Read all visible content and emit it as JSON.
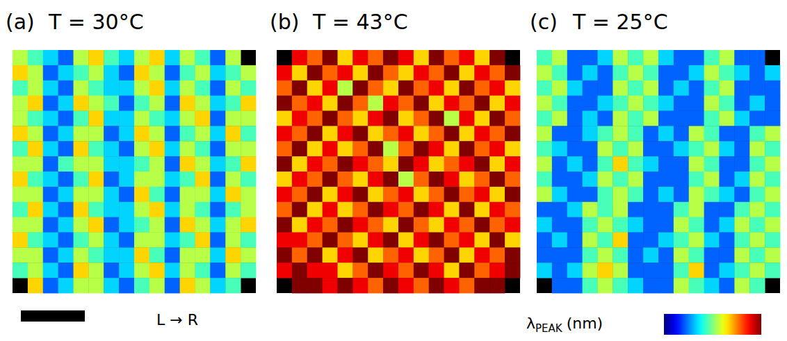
{
  "chart_data": [
    {
      "type": "heatmap",
      "panel": "(a)",
      "title": "T = 30°C",
      "annotation": "L → R",
      "cells": [
        [
          5,
          4,
          3,
          2,
          5,
          6,
          4,
          3,
          5,
          6,
          3,
          5,
          4,
          2,
          5,
          null
        ],
        [
          6,
          5,
          2,
          3,
          4,
          5,
          3,
          2,
          6,
          5,
          2,
          4,
          5,
          3,
          4,
          5
        ],
        [
          4,
          5,
          3,
          2,
          5,
          4,
          3,
          3,
          5,
          6,
          3,
          5,
          4,
          2,
          5,
          4
        ],
        [
          5,
          6,
          2,
          3,
          6,
          5,
          4,
          2,
          4,
          5,
          2,
          6,
          5,
          3,
          4,
          6
        ],
        [
          5,
          4,
          3,
          2,
          4,
          6,
          3,
          3,
          5,
          4,
          3,
          5,
          6,
          2,
          5,
          5
        ],
        [
          6,
          5,
          2,
          3,
          5,
          5,
          2,
          3,
          6,
          5,
          2,
          4,
          5,
          3,
          6,
          4
        ],
        [
          4,
          6,
          3,
          2,
          6,
          4,
          3,
          2,
          5,
          6,
          3,
          5,
          4,
          2,
          5,
          5
        ],
        [
          5,
          5,
          2,
          4,
          5,
          5,
          3,
          3,
          4,
          5,
          2,
          6,
          5,
          3,
          4,
          6
        ],
        [
          6,
          4,
          3,
          2,
          4,
          6,
          2,
          3,
          5,
          5,
          3,
          4,
          6,
          2,
          5,
          4
        ],
        [
          5,
          5,
          2,
          3,
          5,
          5,
          3,
          2,
          6,
          4,
          2,
          5,
          5,
          3,
          6,
          5
        ],
        [
          4,
          6,
          3,
          2,
          6,
          4,
          3,
          3,
          5,
          6,
          3,
          5,
          4,
          2,
          4,
          5
        ],
        [
          5,
          5,
          2,
          3,
          5,
          6,
          2,
          3,
          4,
          5,
          2,
          6,
          5,
          3,
          5,
          6
        ],
        [
          6,
          4,
          3,
          2,
          4,
          5,
          3,
          2,
          5,
          5,
          3,
          4,
          6,
          2,
          5,
          4
        ],
        [
          5,
          5,
          2,
          3,
          5,
          4,
          3,
          3,
          6,
          4,
          2,
          5,
          5,
          3,
          6,
          5
        ],
        [
          4,
          5,
          3,
          2,
          6,
          5,
          2,
          3,
          5,
          6,
          3,
          5,
          4,
          2,
          5,
          4
        ],
        [
          null,
          6,
          2,
          3,
          5,
          5,
          3,
          2,
          4,
          5,
          2,
          6,
          5,
          3,
          4,
          null
        ]
      ]
    },
    {
      "type": "heatmap",
      "panel": "(b)",
      "title": "T = 43°C",
      "cells": [
        [
          null,
          8,
          7,
          9,
          6,
          8,
          7,
          9,
          8,
          6,
          9,
          7,
          8,
          6,
          9,
          null
        ],
        [
          8,
          6,
          9,
          7,
          8,
          6,
          9,
          7,
          6,
          8,
          7,
          9,
          6,
          8,
          7,
          9
        ],
        [
          7,
          9,
          6,
          8,
          5,
          9,
          7,
          6,
          9,
          7,
          8,
          6,
          9,
          7,
          8,
          6
        ],
        [
          9,
          7,
          8,
          6,
          9,
          7,
          5,
          8,
          7,
          9,
          6,
          8,
          7,
          9,
          6,
          8
        ],
        [
          6,
          8,
          7,
          9,
          7,
          6,
          8,
          9,
          6,
          7,
          9,
          5,
          8,
          6,
          9,
          7
        ],
        [
          8,
          7,
          9,
          6,
          8,
          9,
          6,
          7,
          8,
          6,
          7,
          9,
          6,
          8,
          7,
          9
        ],
        [
          7,
          9,
          6,
          8,
          6,
          7,
          9,
          5,
          7,
          9,
          8,
          6,
          9,
          7,
          8,
          6
        ],
        [
          9,
          6,
          8,
          7,
          9,
          8,
          7,
          6,
          9,
          8,
          6,
          7,
          8,
          9,
          6,
          8
        ],
        [
          6,
          8,
          7,
          9,
          7,
          6,
          8,
          9,
          5,
          7,
          9,
          8,
          6,
          7,
          9,
          7
        ],
        [
          8,
          7,
          9,
          6,
          8,
          9,
          6,
          7,
          8,
          6,
          7,
          9,
          7,
          8,
          6,
          9
        ],
        [
          7,
          9,
          6,
          8,
          6,
          7,
          9,
          8,
          7,
          9,
          8,
          6,
          9,
          6,
          8,
          7
        ],
        [
          9,
          6,
          8,
          7,
          9,
          8,
          7,
          6,
          9,
          7,
          6,
          8,
          7,
          9,
          7,
          8
        ],
        [
          8,
          8,
          7,
          9,
          7,
          6,
          8,
          9,
          6,
          8,
          9,
          7,
          8,
          6,
          9,
          6
        ],
        [
          9,
          7,
          9,
          6,
          8,
          9,
          6,
          7,
          8,
          6,
          7,
          9,
          6,
          8,
          7,
          9
        ],
        [
          8,
          9,
          8,
          8,
          6,
          7,
          9,
          8,
          7,
          9,
          8,
          6,
          9,
          7,
          8,
          9
        ],
        [
          null,
          9,
          9,
          8,
          9,
          8,
          7,
          9,
          8,
          7,
          9,
          8,
          7,
          9,
          9,
          null
        ]
      ]
    },
    {
      "type": "heatmap",
      "panel": "(c)",
      "title": "T = 25°C",
      "cells": [
        [
          4,
          5,
          2,
          2,
          3,
          5,
          4,
          5,
          3,
          2,
          2,
          4,
          5,
          2,
          2,
          null
        ],
        [
          5,
          4,
          2,
          3,
          2,
          4,
          5,
          4,
          2,
          2,
          3,
          5,
          4,
          3,
          2,
          3
        ],
        [
          4,
          5,
          3,
          2,
          2,
          5,
          4,
          5,
          2,
          3,
          2,
          4,
          5,
          2,
          2,
          2
        ],
        [
          5,
          4,
          2,
          2,
          3,
          4,
          5,
          4,
          3,
          2,
          2,
          5,
          4,
          2,
          3,
          2
        ],
        [
          4,
          5,
          2,
          3,
          2,
          5,
          4,
          5,
          2,
          2,
          2,
          4,
          5,
          3,
          2,
          2
        ],
        [
          5,
          2,
          2,
          3,
          4,
          5,
          4,
          2,
          3,
          2,
          5,
          4,
          2,
          2,
          4,
          5
        ],
        [
          4,
          3,
          2,
          2,
          5,
          4,
          5,
          2,
          2,
          3,
          4,
          5,
          3,
          2,
          5,
          4
        ],
        [
          5,
          2,
          3,
          2,
          4,
          6,
          4,
          3,
          2,
          2,
          5,
          4,
          2,
          2,
          4,
          5
        ],
        [
          4,
          2,
          2,
          3,
          5,
          4,
          5,
          2,
          2,
          2,
          4,
          5,
          2,
          3,
          5,
          4
        ],
        [
          5,
          3,
          2,
          2,
          4,
          5,
          4,
          2,
          3,
          2,
          5,
          4,
          3,
          2,
          4,
          5
        ],
        [
          2,
          2,
          3,
          5,
          4,
          5,
          2,
          2,
          2,
          4,
          5,
          2,
          2,
          4,
          5,
          4
        ],
        [
          3,
          2,
          2,
          4,
          5,
          4,
          3,
          2,
          2,
          5,
          4,
          2,
          3,
          5,
          4,
          5
        ],
        [
          2,
          3,
          2,
          5,
          4,
          6,
          2,
          2,
          3,
          4,
          5,
          3,
          2,
          4,
          5,
          4
        ],
        [
          2,
          2,
          2,
          4,
          5,
          4,
          2,
          3,
          2,
          5,
          4,
          2,
          2,
          5,
          4,
          5
        ],
        [
          3,
          2,
          3,
          5,
          6,
          5,
          2,
          2,
          2,
          4,
          6,
          2,
          3,
          4,
          5,
          4
        ],
        [
          null,
          2,
          2,
          4,
          5,
          4,
          3,
          2,
          2,
          5,
          4,
          3,
          2,
          5,
          4,
          null
        ]
      ],
      "colorbar": {
        "symbol": "λ",
        "subscript": "PEAK",
        "unit": "(nm)",
        "color_range": [
          0,
          9
        ]
      }
    }
  ]
}
